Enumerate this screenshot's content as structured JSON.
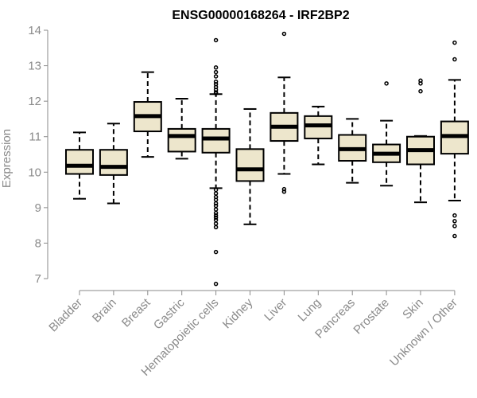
{
  "chart_data": {
    "type": "boxplot",
    "title": "ENSG00000168264 - IRF2BP2",
    "ylabel": "Expression",
    "xlabel": "",
    "ylim": [
      7,
      14
    ],
    "yticks": [
      7,
      8,
      9,
      10,
      11,
      12,
      13,
      14
    ],
    "grid": false,
    "legend": "none",
    "box_fill": "#ede6cc",
    "categories": [
      "Bladder",
      "Brain",
      "Breast",
      "Gastric",
      "Hematopoietic cells",
      "Kidney",
      "Liver",
      "Lung",
      "Pancreas",
      "Prostate",
      "Skin",
      "Unknown / Other"
    ],
    "boxes": [
      {
        "whisker_low": 9.25,
        "q1": 9.95,
        "median": 10.18,
        "q3": 10.63,
        "whisker_high": 11.12,
        "outliers": []
      },
      {
        "whisker_low": 9.12,
        "q1": 9.92,
        "median": 10.15,
        "q3": 10.63,
        "whisker_high": 11.37,
        "outliers": []
      },
      {
        "whisker_low": 10.43,
        "q1": 11.15,
        "median": 11.58,
        "q3": 11.98,
        "whisker_high": 12.82,
        "outliers": []
      },
      {
        "whisker_low": 10.38,
        "q1": 10.58,
        "median": 11.02,
        "q3": 11.22,
        "whisker_high": 12.07,
        "outliers": []
      },
      {
        "whisker_low": 9.55,
        "q1": 10.55,
        "median": 10.95,
        "q3": 11.22,
        "whisker_high": 12.2,
        "outliers": [
          13.72,
          12.95,
          12.82,
          12.7,
          12.55,
          12.48,
          12.4,
          12.32,
          12.25,
          12.22,
          9.5,
          9.4,
          9.3,
          9.22,
          9.12,
          9.05,
          8.95,
          8.85,
          8.78,
          8.72,
          8.65,
          8.55,
          8.45,
          7.75,
          6.85
        ]
      },
      {
        "whisker_low": 8.53,
        "q1": 9.75,
        "median": 10.08,
        "q3": 10.65,
        "whisker_high": 11.78,
        "outliers": []
      },
      {
        "whisker_low": 9.95,
        "q1": 10.88,
        "median": 11.28,
        "q3": 11.67,
        "whisker_high": 12.67,
        "outliers": [
          13.9,
          9.52,
          9.45
        ]
      },
      {
        "whisker_low": 10.22,
        "q1": 10.95,
        "median": 11.32,
        "q3": 11.58,
        "whisker_high": 11.85,
        "outliers": []
      },
      {
        "whisker_low": 9.7,
        "q1": 10.32,
        "median": 10.65,
        "q3": 11.05,
        "whisker_high": 11.5,
        "outliers": []
      },
      {
        "whisker_low": 9.62,
        "q1": 10.28,
        "median": 10.52,
        "q3": 10.78,
        "whisker_high": 11.45,
        "outliers": [
          12.5
        ]
      },
      {
        "whisker_low": 9.15,
        "q1": 10.22,
        "median": 10.62,
        "q3": 11.0,
        "whisker_high": 11.02,
        "outliers": [
          12.58,
          12.5,
          12.28
        ]
      },
      {
        "whisker_low": 9.2,
        "q1": 10.52,
        "median": 11.02,
        "q3": 11.43,
        "whisker_high": 12.6,
        "outliers": [
          13.65,
          13.18,
          8.78,
          8.62,
          8.48,
          8.2
        ]
      }
    ]
  }
}
